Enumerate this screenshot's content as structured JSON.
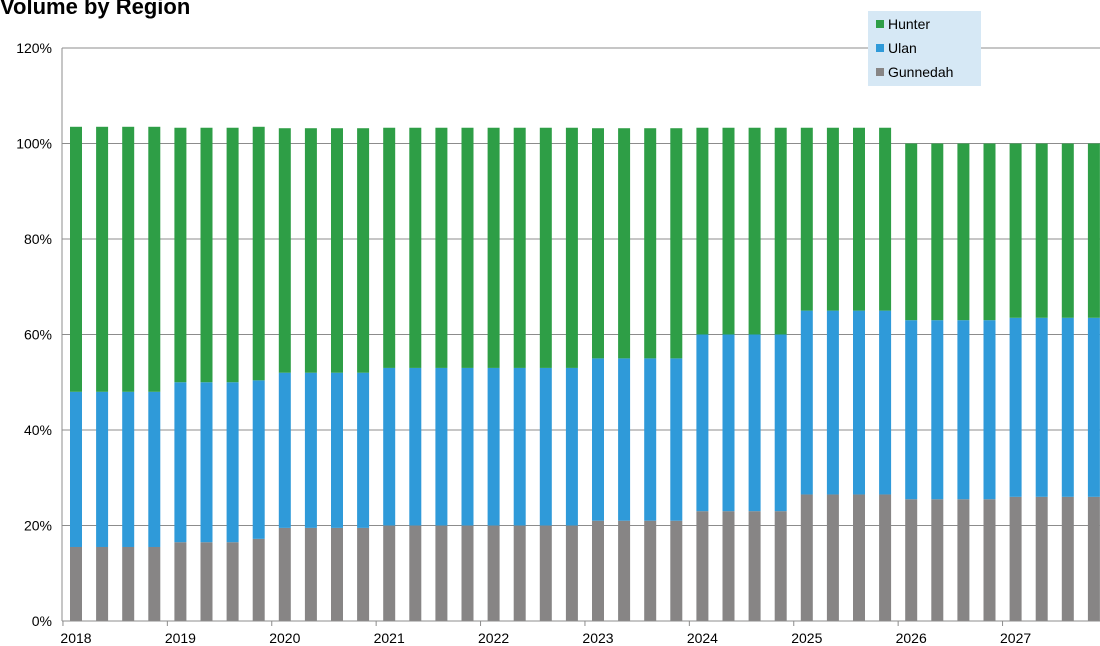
{
  "title": "Volume by Region",
  "legend": {
    "items": [
      {
        "label": "Hunter",
        "color": "#2e9e46"
      },
      {
        "label": "Ulan",
        "color": "#2f9ad9"
      },
      {
        "label": "Gunnedah",
        "color": "#878585"
      }
    ]
  },
  "chart_data": {
    "type": "bar",
    "stacked": true,
    "title": "Volume by Region",
    "xlabel": "",
    "ylabel": "",
    "ylim": [
      0,
      120
    ],
    "y_ticks": [
      "0%",
      "20%",
      "40%",
      "60%",
      "80%",
      "100%",
      "120%"
    ],
    "x_tick_labels": [
      "2018",
      "2019",
      "2020",
      "2021",
      "2022",
      "2023",
      "2024",
      "2025",
      "2026",
      "2027"
    ],
    "grid": true,
    "legend_position": "top-right",
    "categories": [
      "2018 Q1",
      "2018 Q2",
      "2018 Q3",
      "2018 Q4",
      "2019 Q1",
      "2019 Q2",
      "2019 Q3",
      "2019 Q4",
      "2020 Q1",
      "2020 Q2",
      "2020 Q3",
      "2020 Q4",
      "2021 Q1",
      "2021 Q2",
      "2021 Q3",
      "2021 Q4",
      "2022 Q1",
      "2022 Q2",
      "2022 Q3",
      "2022 Q4",
      "2023 Q1",
      "2023 Q2",
      "2023 Q3",
      "2023 Q4",
      "2024 Q1",
      "2024 Q2",
      "2024 Q3",
      "2024 Q4",
      "2025 Q1",
      "2025 Q2",
      "2025 Q3",
      "2025 Q4",
      "2026 Q1",
      "2026 Q2",
      "2026 Q3",
      "2026 Q4",
      "2027 Q1",
      "2027 Q2",
      "2027 Q3",
      "2027 Q4"
    ],
    "series": [
      {
        "name": "Gunnedah",
        "color": "#878585",
        "values": [
          15.5,
          15.5,
          15.5,
          15.5,
          16.5,
          16.5,
          16.5,
          17.2,
          19.5,
          19.5,
          19.5,
          19.5,
          20,
          20,
          20,
          20,
          20,
          20,
          20,
          20,
          21,
          21,
          21,
          21,
          23,
          23,
          23,
          23,
          26.5,
          26.5,
          26.5,
          26.5,
          25.5,
          25.5,
          25.5,
          25.5,
          26,
          26,
          26,
          26
        ]
      },
      {
        "name": "Ulan",
        "color": "#2f9ad9",
        "values": [
          32.5,
          32.5,
          32.5,
          32.5,
          33.5,
          33.5,
          33.5,
          33.2,
          32.5,
          32.5,
          32.5,
          32.5,
          33,
          33,
          33,
          33,
          33,
          33,
          33,
          33,
          34,
          34,
          34,
          34,
          37,
          37,
          37,
          37,
          38.5,
          38.5,
          38.5,
          38.5,
          37.5,
          37.5,
          37.5,
          37.5,
          37.5,
          37.5,
          37.5,
          37.5
        ]
      },
      {
        "name": "Hunter",
        "color": "#2e9e46",
        "values": [
          55.5,
          55.5,
          55.5,
          55.5,
          53.3,
          53.3,
          53.3,
          53.1,
          51.2,
          51.2,
          51.2,
          51.2,
          50.3,
          50.3,
          50.3,
          50.3,
          50.3,
          50.3,
          50.3,
          50.3,
          48.2,
          48.2,
          48.2,
          48.2,
          43.3,
          43.3,
          43.3,
          43.3,
          38.3,
          38.3,
          38.3,
          38.3,
          37,
          37,
          37,
          37,
          36.5,
          36.5,
          36.5,
          36.5
        ]
      }
    ]
  }
}
